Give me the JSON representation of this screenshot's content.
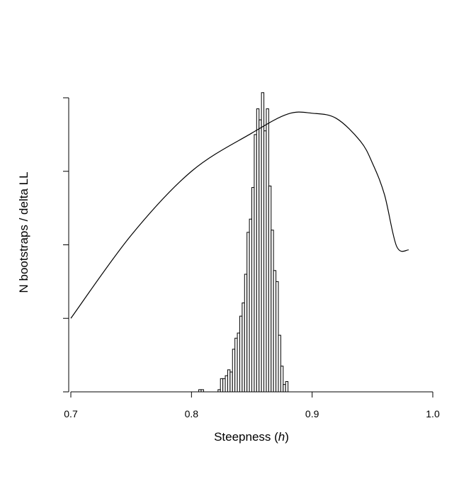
{
  "chart_data": {
    "type": "bar",
    "title": "",
    "xlabel_prefix": "Steepness (",
    "xlabel_var": "h",
    "xlabel_suffix": ")",
    "ylabel": "N bootstraps / delta LL",
    "xlim": [
      0.7,
      1.0
    ],
    "ylim": [
      0,
      405
    ],
    "x_ticks": [
      {
        "value": 0.7,
        "label": "0.7"
      },
      {
        "value": 0.8,
        "label": "0.8"
      },
      {
        "value": 0.9,
        "label": "0.9"
      },
      {
        "value": 1.0,
        "label": "1.0"
      }
    ],
    "y_tick_values": [
      0,
      100,
      200,
      300,
      400
    ],
    "y_tick_labels_shown": false,
    "grid": false,
    "legend": "none",
    "colors": {
      "line": "#000000",
      "bar_fill": "#ffffff",
      "bar_stroke": "#000000"
    },
    "histogram": {
      "name": "N bootstraps",
      "bin_width": 0.002,
      "bins": [
        {
          "start": 0.806,
          "count": 3
        },
        {
          "start": 0.808,
          "count": 3
        },
        {
          "start": 0.822,
          "count": 3
        },
        {
          "start": 0.824,
          "count": 18
        },
        {
          "start": 0.826,
          "count": 18
        },
        {
          "start": 0.828,
          "count": 22
        },
        {
          "start": 0.83,
          "count": 30
        },
        {
          "start": 0.832,
          "count": 27
        },
        {
          "start": 0.834,
          "count": 58
        },
        {
          "start": 0.836,
          "count": 73
        },
        {
          "start": 0.838,
          "count": 80
        },
        {
          "start": 0.84,
          "count": 103
        },
        {
          "start": 0.842,
          "count": 121
        },
        {
          "start": 0.844,
          "count": 160
        },
        {
          "start": 0.846,
          "count": 217
        },
        {
          "start": 0.848,
          "count": 235
        },
        {
          "start": 0.85,
          "count": 278
        },
        {
          "start": 0.852,
          "count": 350
        },
        {
          "start": 0.854,
          "count": 385
        },
        {
          "start": 0.856,
          "count": 370
        },
        {
          "start": 0.858,
          "count": 407
        },
        {
          "start": 0.86,
          "count": 355
        },
        {
          "start": 0.862,
          "count": 385
        },
        {
          "start": 0.864,
          "count": 280
        },
        {
          "start": 0.866,
          "count": 220
        },
        {
          "start": 0.868,
          "count": 165
        },
        {
          "start": 0.87,
          "count": 150
        },
        {
          "start": 0.872,
          "count": 77
        },
        {
          "start": 0.874,
          "count": 35
        },
        {
          "start": 0.876,
          "count": 10
        },
        {
          "start": 0.878,
          "count": 14
        }
      ]
    },
    "curve": {
      "name": "delta LL",
      "x": [
        0.7,
        0.75,
        0.8,
        0.85,
        0.88,
        0.9,
        0.92,
        0.94,
        0.95,
        0.96,
        0.97,
        0.98
      ],
      "y": [
        100,
        213,
        300,
        352,
        378,
        379,
        372,
        341,
        311,
        268,
        198,
        193
      ]
    }
  }
}
